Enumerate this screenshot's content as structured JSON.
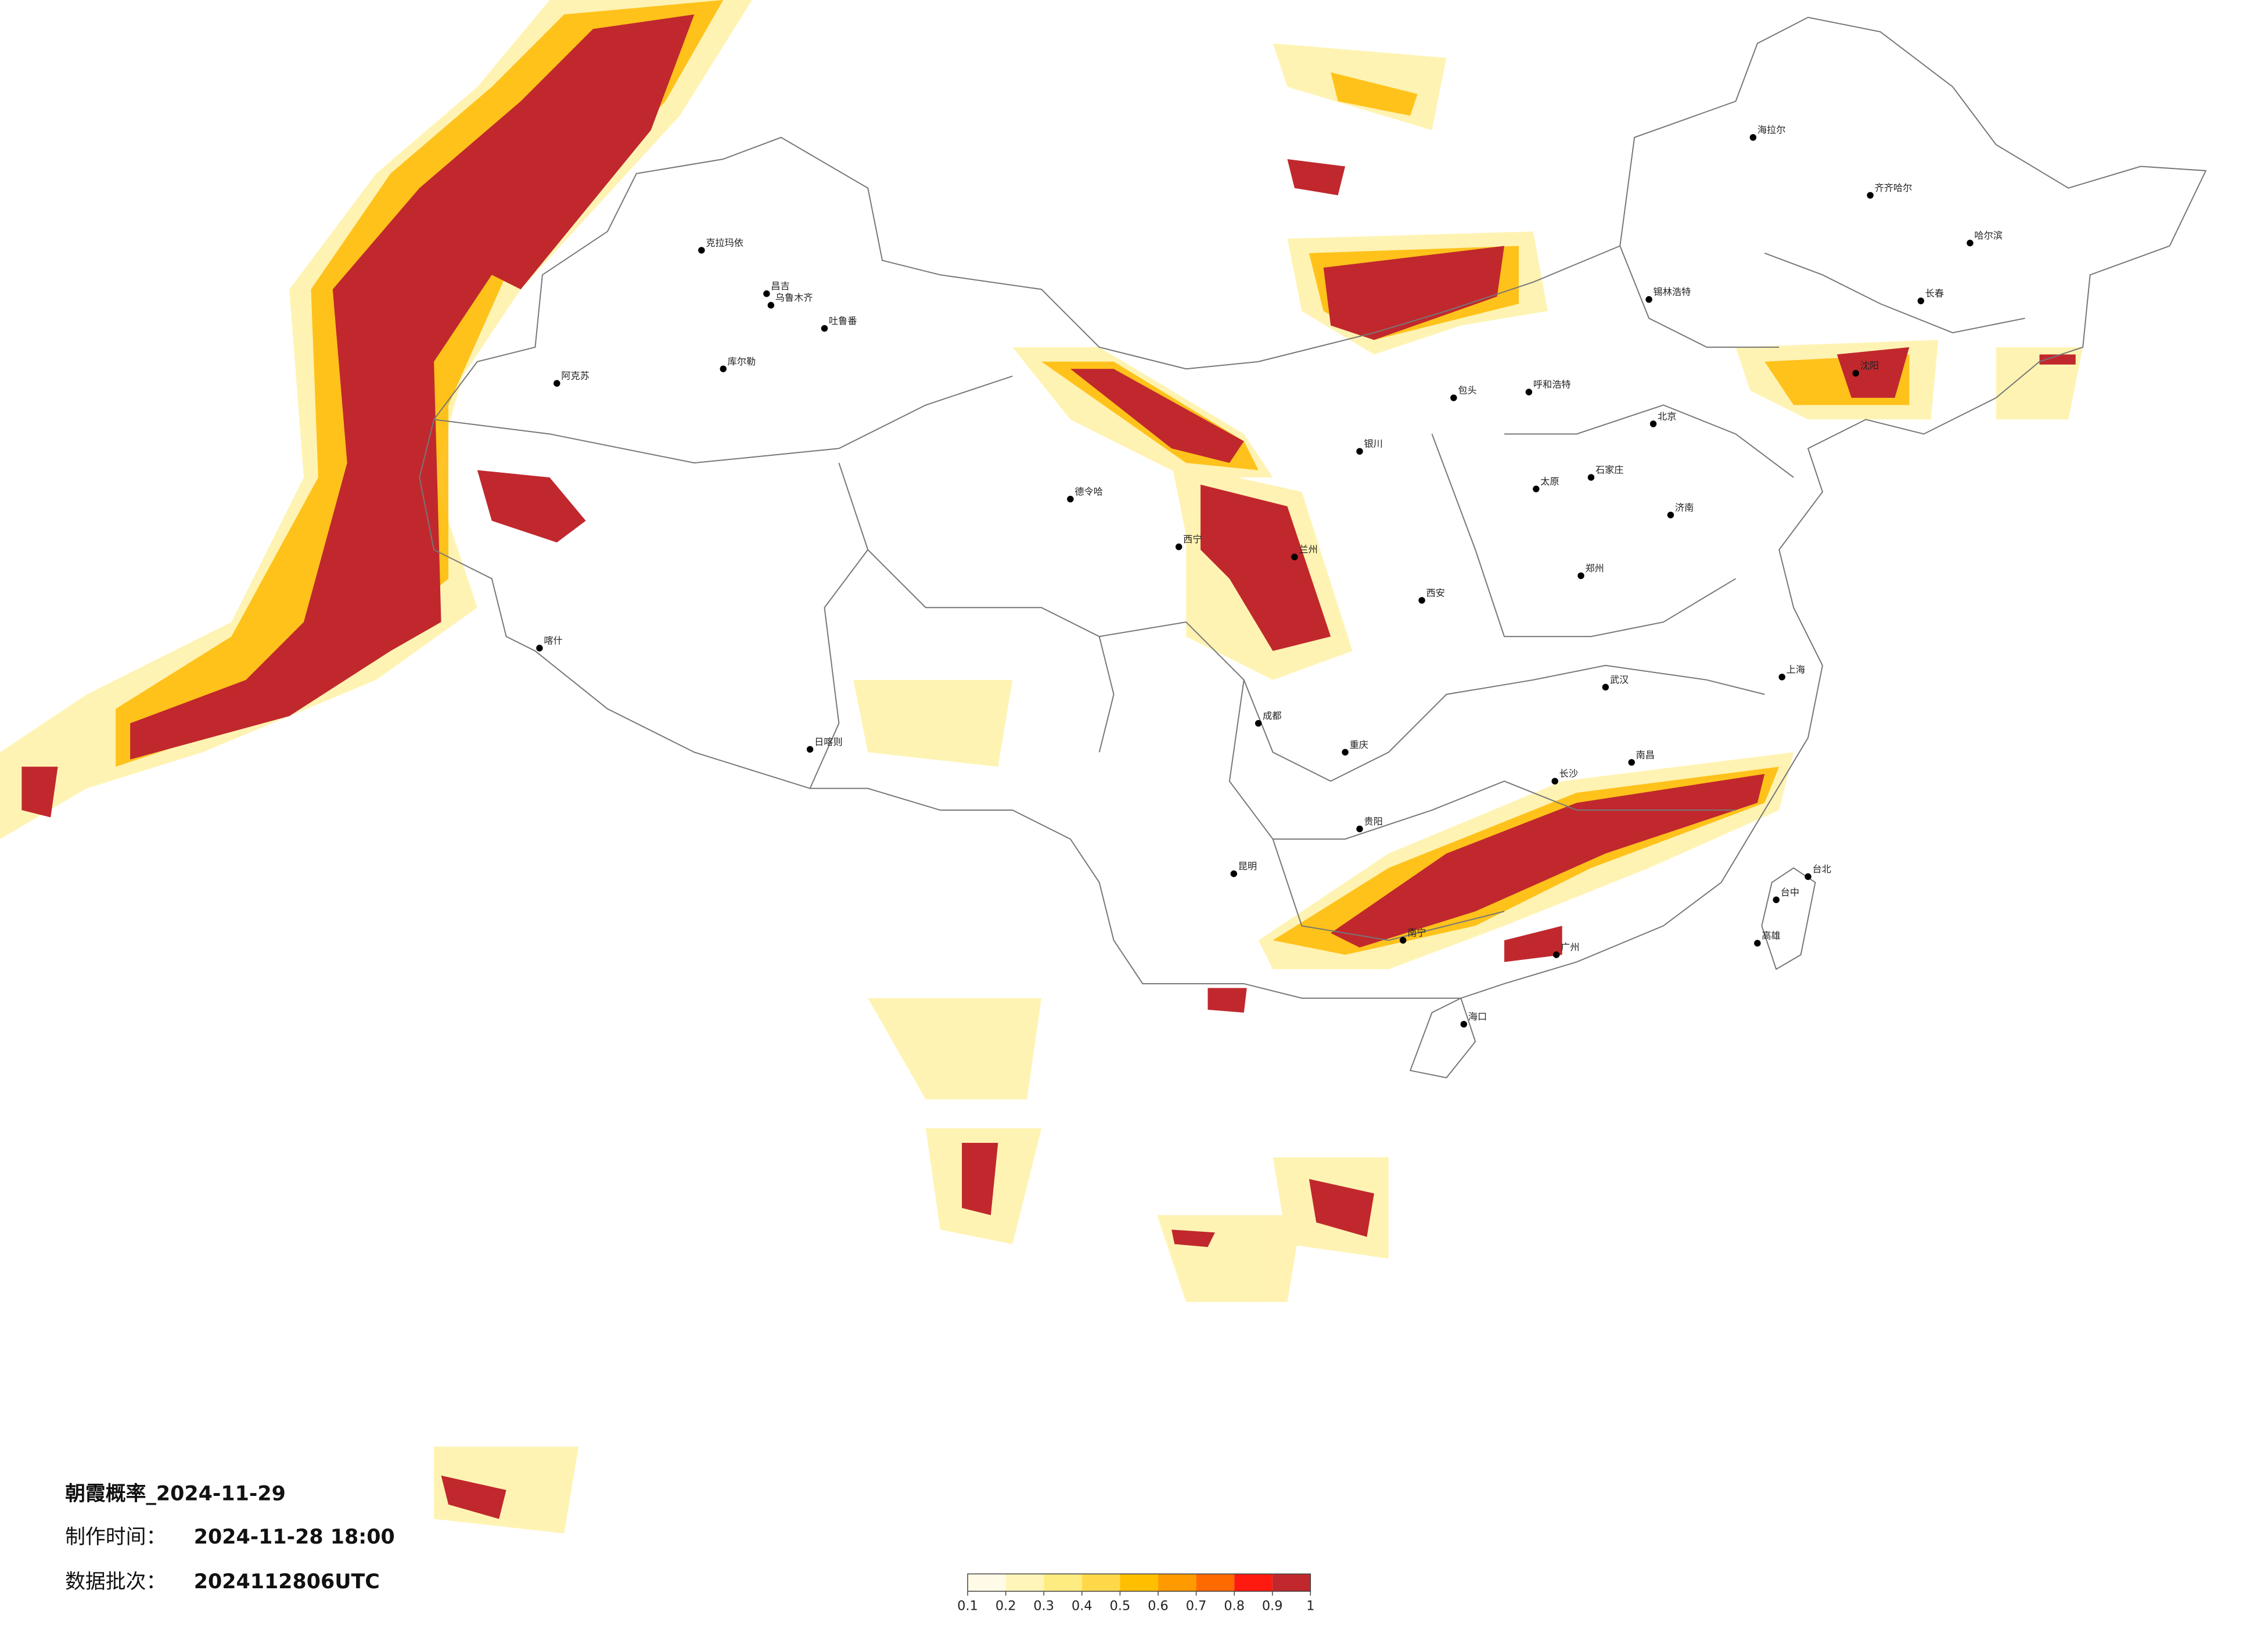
{
  "map": {
    "title": "朝霞概率_2024-11-29",
    "made_label": "制作时间：",
    "made_time": "2024-11-28 18:00",
    "batch_label": "数据批次：",
    "batch": "2024112806UTC",
    "colorbar": {
      "ticks": [
        0.1,
        0.2,
        0.3,
        0.4,
        0.5,
        0.6,
        0.7,
        0.8,
        0.9,
        1
      ],
      "colors": [
        "#fffbe6",
        "#fff5b8",
        "#ffec80",
        "#ffd84a",
        "#ffbf00",
        "#ff9a00",
        "#ff6a00",
        "#ff1a10",
        "#c0282d"
      ]
    },
    "cities": [
      "克拉玛依",
      "昌吉",
      "乌鲁木齐",
      "吐鲁番",
      "库尔勒",
      "阿克苏",
      "喀什",
      "德令哈",
      "日喀则",
      "西宁",
      "兰州",
      "银川",
      "包头",
      "呼和浩特",
      "锡林浩特",
      "海拉尔",
      "齐齐哈尔",
      "哈尔滨",
      "长春",
      "沈阳",
      "北京",
      "石家庄",
      "太原",
      "济南",
      "郑州",
      "西安",
      "成都",
      "重庆",
      "贵阳",
      "昆明",
      "南宁",
      "长沙",
      "南昌",
      "武汉",
      "上海",
      "广州",
      "海口",
      "台北",
      "台中",
      "高雄"
    ]
  }
}
